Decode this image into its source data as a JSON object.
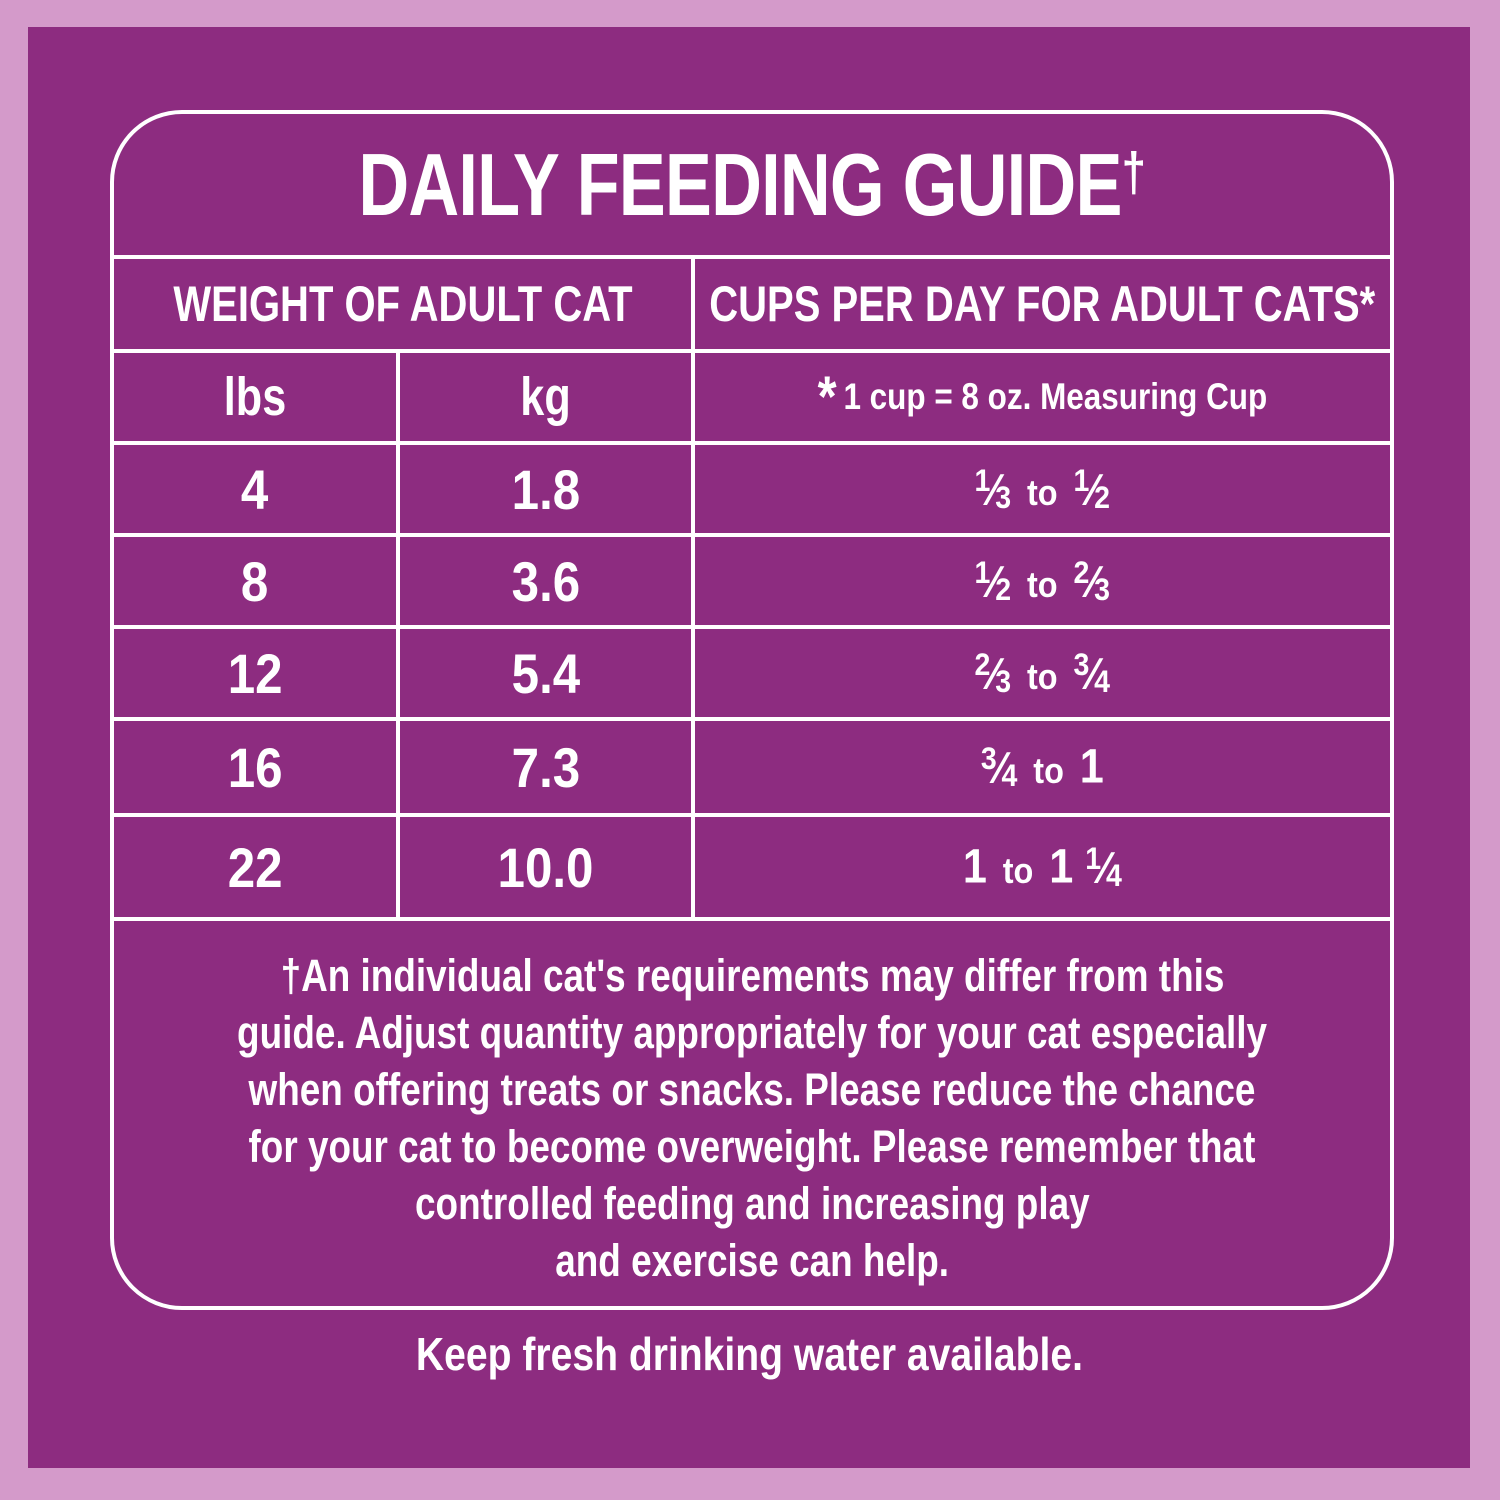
{
  "colors": {
    "outer_background": "#d49aca",
    "panel_background": "#8d2c80",
    "text": "#ffffff",
    "line": "#ffffff"
  },
  "title": {
    "text": "DAILY FEEDING GUIDE",
    "dagger": "†"
  },
  "table": {
    "headers": {
      "weight": "WEIGHT OF ADULT CAT",
      "cups": "CUPS PER DAY FOR ADULT CATS*"
    },
    "subheaders": {
      "lbs": "lbs",
      "kg": "kg",
      "cup_note_star": "*",
      "cup_note": "1 cup = 8 oz. Measuring Cup"
    },
    "rows": [
      {
        "lbs": "4",
        "kg": "1.8",
        "cups": "1/3 to 1/2"
      },
      {
        "lbs": "8",
        "kg": "3.6",
        "cups": "1/2 to 2/3"
      },
      {
        "lbs": "12",
        "kg": "5.4",
        "cups": "2/3 to 3/4"
      },
      {
        "lbs": "16",
        "kg": "7.3",
        "cups": "3/4 to 1"
      },
      {
        "lbs": "22",
        "kg": "10.0",
        "cups": "1 to 1 1/4"
      }
    ]
  },
  "footnote": {
    "lines": [
      "†An individual cat's requirements may differ from this",
      "guide. Adjust quantity appropriately for your cat especially",
      "when offering treats or snacks. Please reduce the chance",
      "for your cat to become overweight. Please remember that",
      "controlled feeding and increasing play",
      "and exercise can help."
    ]
  },
  "bottom_note": "Keep fresh drinking water available."
}
